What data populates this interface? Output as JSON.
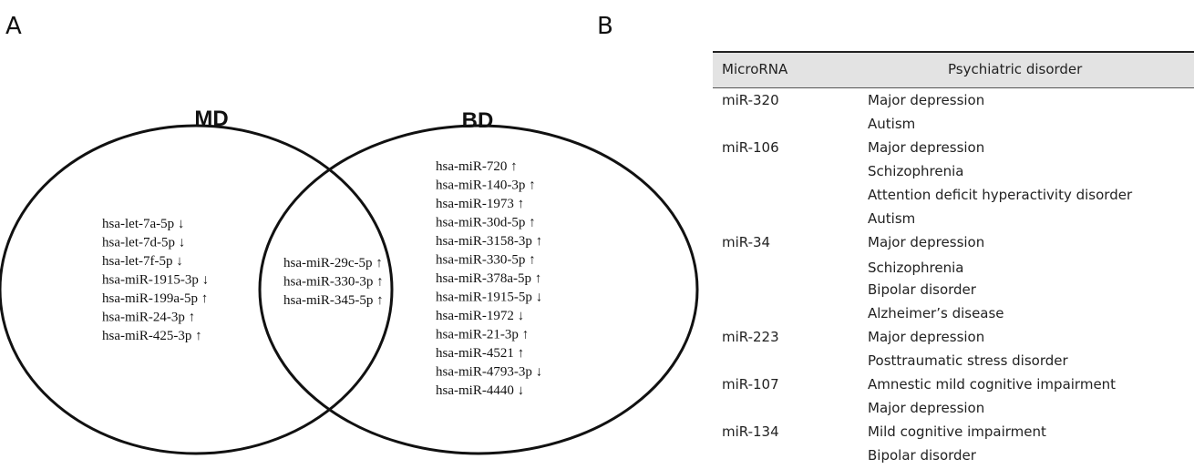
{
  "panels": {
    "a_label": "A",
    "b_label": "B"
  },
  "venn": {
    "set_left": "MD",
    "set_right": "BD",
    "md_only": [
      "hsa-let-7a-5p ↓",
      "hsa-let-7d-5p ↓",
      "hsa-let-7f-5p ↓",
      "hsa-miR-1915-3p ↓",
      "hsa-miR-199a-5p ↑",
      "hsa-miR-24-3p ↑",
      "hsa-miR-425-3p ↑"
    ],
    "shared": [
      "hsa-miR-29c-5p ↑",
      "hsa-miR-330-3p ↑",
      "hsa-miR-345-5p ↑"
    ],
    "bd_only": [
      "hsa-miR-720 ↑",
      "hsa-miR-140-3p ↑",
      "hsa-miR-1973 ↑",
      "hsa-miR-30d-5p ↑",
      "hsa-miR-3158-3p ↑",
      "hsa-miR-330-5p ↑",
      "hsa-miR-378a-5p ↑",
      "hsa-miR-1915-5p ↓",
      "hsa-miR-1972 ↓",
      "hsa-miR-21-3p ↑",
      "hsa-miR-4521 ↑",
      "hsa-miR-4793-3p ↓",
      "hsa-miR-4440 ↓"
    ]
  },
  "table": {
    "headers": {
      "microrna": "MicroRNA",
      "disorder": "Psychiatric disorder"
    },
    "rows": [
      {
        "microrna": "miR-320",
        "disorder": "Major depression"
      },
      {
        "microrna": "",
        "disorder": "Autism"
      },
      {
        "microrna": "miR-106",
        "disorder": "Major depression"
      },
      {
        "microrna": "",
        "disorder": "Schizophrenia"
      },
      {
        "microrna": "",
        "disorder": "Attention deficit hyperactivity disorder"
      },
      {
        "microrna": "",
        "disorder": "Autism"
      },
      {
        "microrna": "miR-34",
        "disorder": "Major depression"
      },
      {
        "microrna": "",
        "disorder": "Schizophrenia"
      },
      {
        "microrna": "",
        "disorder": "Bipolar disorder"
      },
      {
        "microrna": "",
        "disorder": "Alzheimer’s disease"
      },
      {
        "microrna": "miR-223",
        "disorder": "Major depression"
      },
      {
        "microrna": "",
        "disorder": "Posttraumatic stress disorder"
      },
      {
        "microrna": "miR-107",
        "disorder": "Amnestic mild cognitive impairment"
      },
      {
        "microrna": "",
        "disorder": "Major depression"
      },
      {
        "microrna": "miR-134",
        "disorder": "Mild cognitive impairment"
      },
      {
        "microrna": "",
        "disorder": "Bipolar disorder"
      }
    ]
  }
}
